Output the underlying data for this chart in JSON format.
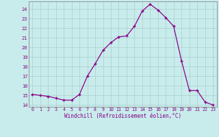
{
  "x": [
    0,
    1,
    2,
    3,
    4,
    5,
    6,
    7,
    8,
    9,
    10,
    11,
    12,
    13,
    14,
    15,
    16,
    17,
    18,
    19,
    20,
    21,
    22,
    23
  ],
  "y": [
    15.1,
    15.0,
    14.9,
    14.7,
    14.5,
    14.5,
    15.1,
    17.0,
    18.3,
    19.7,
    20.5,
    21.1,
    21.2,
    22.2,
    23.8,
    24.5,
    23.9,
    23.1,
    22.2,
    18.6,
    15.5,
    15.5,
    14.3,
    14.0
  ],
  "line_color": "#880088",
  "marker": "+",
  "background_color": "#c8ecec",
  "grid_color": "#aacccc",
  "xlabel": "Windchill (Refroidissement éolien,°C)",
  "xlabel_color": "#880088",
  "tick_color": "#880088",
  "xlim": [
    -0.5,
    23.5
  ],
  "ylim": [
    13.8,
    24.8
  ],
  "yticks": [
    14,
    15,
    16,
    17,
    18,
    19,
    20,
    21,
    22,
    23,
    24
  ],
  "xtick_labels": [
    "0",
    "1",
    "2",
    "3",
    "4",
    "5",
    "6",
    "7",
    "8",
    "9",
    "10",
    "11",
    "12",
    "13",
    "14",
    "15",
    "16",
    "17",
    "18",
    "19",
    "20",
    "21",
    "22",
    "23"
  ],
  "spine_color": "#888888",
  "line_width": 0.9,
  "marker_size": 3.5,
  "marker_edge_width": 1.0
}
